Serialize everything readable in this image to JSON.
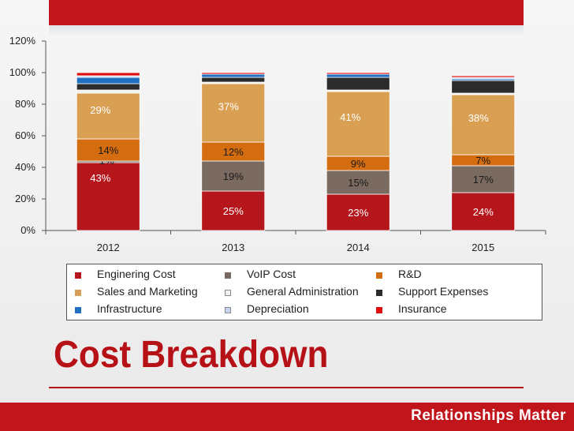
{
  "slide": {
    "title": "Cost Breakdown",
    "footer": "Relationships Matter"
  },
  "colors": {
    "accent_red": "#c0151b",
    "title_red": "#b71118"
  },
  "chart_data": {
    "type": "bar",
    "stacked": true,
    "categories": [
      "2012",
      "2013",
      "2014",
      "2015"
    ],
    "ylim": [
      0,
      120
    ],
    "yticks": [
      0,
      20,
      40,
      60,
      80,
      100,
      120
    ],
    "ytick_labels": [
      "0%",
      "20%",
      "40%",
      "60%",
      "80%",
      "100%",
      "120%"
    ],
    "grid": false,
    "legend_position": "bottom",
    "series": [
      {
        "name": "Enginering Cost",
        "color": "#b5161b",
        "values": [
          43,
          25,
          23,
          24
        ],
        "labels": [
          "43%",
          "25%",
          "23%",
          "24%"
        ],
        "label_color": "#ffffff"
      },
      {
        "name": "VoIP Cost",
        "color": "#7a6a60",
        "values": [
          1,
          19,
          15,
          17
        ],
        "labels": [
          "1%",
          "19%",
          "15%",
          "17%"
        ],
        "label_color": "#1a1a1a"
      },
      {
        "name": "R&D",
        "color": "#d46c10",
        "values": [
          14,
          12,
          9,
          7
        ],
        "labels": [
          "14%",
          "12%",
          "9%",
          "7%"
        ],
        "label_color": "#1a1a1a"
      },
      {
        "name": "Sales and Marketing",
        "color": "#d9a053",
        "values": [
          29,
          37,
          41,
          38
        ],
        "labels": [
          "29%",
          "37%",
          "41%",
          "38%"
        ],
        "label_color": "#ffffff"
      },
      {
        "name": "General Administration",
        "color": "#f0f0f0",
        "values": [
          2,
          1,
          1,
          1
        ],
        "labels": [
          "",
          "",
          "",
          ""
        ],
        "label_color": "#1a1a1a"
      },
      {
        "name": "Support Expenses",
        "color": "#2b2b2b",
        "values": [
          4,
          3,
          8,
          8
        ],
        "labels": [
          "",
          "",
          "",
          ""
        ],
        "label_color": "#ffffff"
      },
      {
        "name": "Infrastructure",
        "color": "#1f6fc2",
        "values": [
          4,
          2,
          2,
          1
        ],
        "labels": [
          "",
          "",
          "",
          ""
        ],
        "label_color": "#ffffff"
      },
      {
        "name": "Depreciation",
        "color": "#c6d3f0",
        "values": [
          1,
          0,
          0,
          1
        ],
        "labels": [
          "",
          "",
          "",
          ""
        ],
        "label_color": "#1a1a1a"
      },
      {
        "name": "Insurance",
        "color": "#e01010",
        "values": [
          2,
          1,
          1,
          1
        ],
        "labels": [
          "",
          "",
          "",
          ""
        ],
        "label_color": "#ffffff"
      }
    ]
  }
}
